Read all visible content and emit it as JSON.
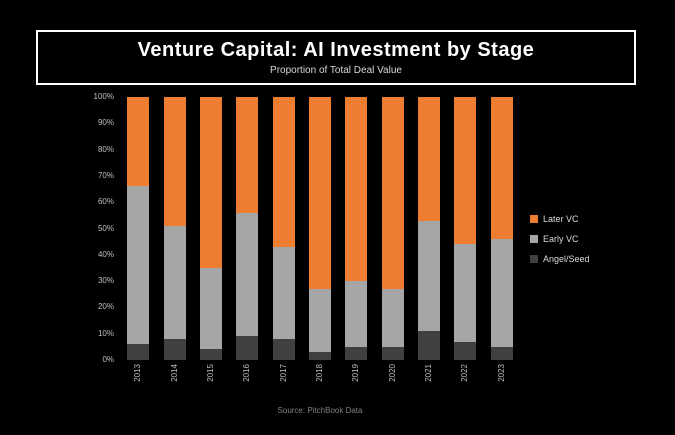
{
  "chart": {
    "title": "Venture Capital: AI Investment by Stage",
    "subtitle": "Proportion of Total Deal Value",
    "source": "Source: PitchBook Data"
  },
  "chart_data": {
    "type": "bar",
    "stacked": true,
    "percent_stacked": true,
    "title": "Venture Capital: AI Investment by Stage",
    "subtitle": "Proportion of Total Deal Value",
    "xlabel": "",
    "ylabel": "",
    "ylim": [
      0,
      100
    ],
    "grid": false,
    "legend_position": "right",
    "background_color": "#000000",
    "categories": [
      "2013",
      "2014",
      "2015",
      "2016",
      "2017",
      "2018",
      "2019",
      "2020",
      "2021",
      "2022",
      "2023"
    ],
    "yticks": [
      "0%",
      "10%",
      "20%",
      "30%",
      "40%",
      "50%",
      "60%",
      "70%",
      "80%",
      "90%",
      "100%"
    ],
    "series": [
      {
        "name": "Angel/Seed",
        "color": "#404040",
        "values": [
          6,
          8,
          4,
          9,
          8,
          3,
          5,
          5,
          11,
          7,
          5
        ]
      },
      {
        "name": "Early VC",
        "color": "#a6a6a6",
        "values": [
          60,
          43,
          31,
          47,
          35,
          24,
          25,
          22,
          42,
          37,
          41
        ]
      },
      {
        "name": "Later VC",
        "color": "#ed7d31",
        "values": [
          34,
          49,
          65,
          44,
          57,
          73,
          70,
          73,
          47,
          56,
          54
        ]
      }
    ],
    "legend_items": [
      {
        "label": "Later VC",
        "color": "#ed7d31"
      },
      {
        "label": "Early VC",
        "color": "#a6a6a6"
      },
      {
        "label": "Angel/Seed",
        "color": "#404040"
      }
    ]
  }
}
